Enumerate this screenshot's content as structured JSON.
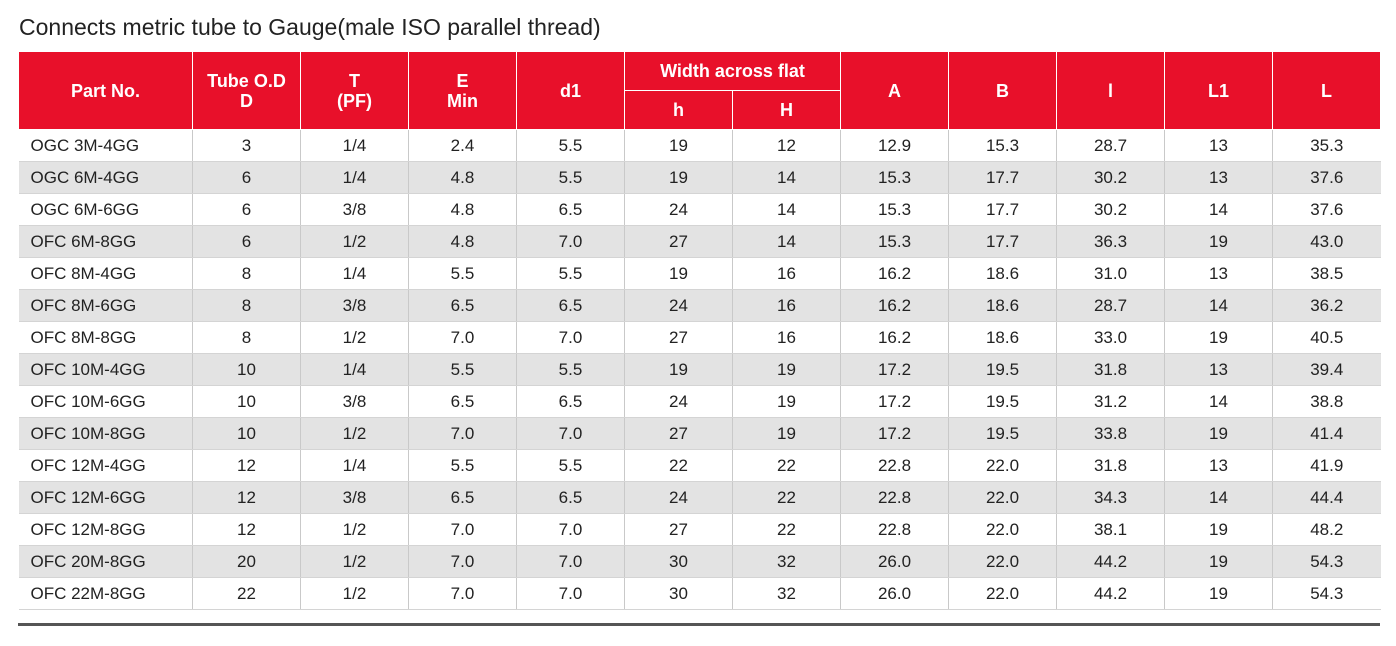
{
  "title": "Connects metric tube to Gauge(male ISO parallel thread)",
  "headers": {
    "part_no": "Part No.",
    "tube_od_line1": "Tube O.D",
    "tube_od_line2": "D",
    "t_line1": "T",
    "t_line2": "(PF)",
    "e_line1": "E",
    "e_line2": "Min",
    "d1": "d1",
    "width_across_flat": "Width across flat",
    "h": "h",
    "H": "H",
    "A": "A",
    "B": "B",
    "l": "l",
    "L1": "L1",
    "L": "L"
  },
  "rows": [
    {
      "part_no": "OGC 3M-4GG",
      "d": "3",
      "t": "1/4",
      "e": "2.4",
      "d1": "5.5",
      "h": "19",
      "H": "12",
      "a": "12.9",
      "b": "15.3",
      "l": "28.7",
      "l1": "13",
      "L": "35.3"
    },
    {
      "part_no": "OGC 6M-4GG",
      "d": "6",
      "t": "1/4",
      "e": "4.8",
      "d1": "5.5",
      "h": "19",
      "H": "14",
      "a": "15.3",
      "b": "17.7",
      "l": "30.2",
      "l1": "13",
      "L": "37.6"
    },
    {
      "part_no": "OGC 6M-6GG",
      "d": "6",
      "t": "3/8",
      "e": "4.8",
      "d1": "6.5",
      "h": "24",
      "H": "14",
      "a": "15.3",
      "b": "17.7",
      "l": "30.2",
      "l1": "14",
      "L": "37.6"
    },
    {
      "part_no": "OFC 6M-8GG",
      "d": "6",
      "t": "1/2",
      "e": "4.8",
      "d1": "7.0",
      "h": "27",
      "H": "14",
      "a": "15.3",
      "b": "17.7",
      "l": "36.3",
      "l1": "19",
      "L": "43.0"
    },
    {
      "part_no": "OFC 8M-4GG",
      "d": "8",
      "t": "1/4",
      "e": "5.5",
      "d1": "5.5",
      "h": "19",
      "H": "16",
      "a": "16.2",
      "b": "18.6",
      "l": "31.0",
      "l1": "13",
      "L": "38.5"
    },
    {
      "part_no": "OFC 8M-6GG",
      "d": "8",
      "t": "3/8",
      "e": "6.5",
      "d1": "6.5",
      "h": "24",
      "H": "16",
      "a": "16.2",
      "b": "18.6",
      "l": "28.7",
      "l1": "14",
      "L": "36.2"
    },
    {
      "part_no": "OFC 8M-8GG",
      "d": "8",
      "t": "1/2",
      "e": "7.0",
      "d1": "7.0",
      "h": "27",
      "H": "16",
      "a": "16.2",
      "b": "18.6",
      "l": "33.0",
      "l1": "19",
      "L": "40.5"
    },
    {
      "part_no": "OFC 10M-4GG",
      "d": "10",
      "t": "1/4",
      "e": "5.5",
      "d1": "5.5",
      "h": "19",
      "H": "19",
      "a": "17.2",
      "b": "19.5",
      "l": "31.8",
      "l1": "13",
      "L": "39.4"
    },
    {
      "part_no": "OFC 10M-6GG",
      "d": "10",
      "t": "3/8",
      "e": "6.5",
      "d1": "6.5",
      "h": "24",
      "H": "19",
      "a": "17.2",
      "b": "19.5",
      "l": "31.2",
      "l1": "14",
      "L": "38.8"
    },
    {
      "part_no": "OFC 10M-8GG",
      "d": "10",
      "t": "1/2",
      "e": "7.0",
      "d1": "7.0",
      "h": "27",
      "H": "19",
      "a": "17.2",
      "b": "19.5",
      "l": "33.8",
      "l1": "19",
      "L": "41.4"
    },
    {
      "part_no": "OFC 12M-4GG",
      "d": "12",
      "t": "1/4",
      "e": "5.5",
      "d1": "5.5",
      "h": "22",
      "H": "22",
      "a": "22.8",
      "b": "22.0",
      "l": "31.8",
      "l1": "13",
      "L": "41.9"
    },
    {
      "part_no": "OFC 12M-6GG",
      "d": "12",
      "t": "3/8",
      "e": "6.5",
      "d1": "6.5",
      "h": "24",
      "H": "22",
      "a": "22.8",
      "b": "22.0",
      "l": "34.3",
      "l1": "14",
      "L": "44.4"
    },
    {
      "part_no": "OFC 12M-8GG",
      "d": "12",
      "t": "1/2",
      "e": "7.0",
      "d1": "7.0",
      "h": "27",
      "H": "22",
      "a": "22.8",
      "b": "22.0",
      "l": "38.1",
      "l1": "19",
      "L": "48.2"
    },
    {
      "part_no": "OFC 20M-8GG",
      "d": "20",
      "t": "1/2",
      "e": "7.0",
      "d1": "7.0",
      "h": "30",
      "H": "32",
      "a": "26.0",
      "b": "22.0",
      "l": "44.2",
      "l1": "19",
      "L": "54.3"
    },
    {
      "part_no": "OFC 22M-8GG",
      "d": "22",
      "t": "1/2",
      "e": "7.0",
      "d1": "7.0",
      "h": "30",
      "H": "32",
      "a": "26.0",
      "b": "22.0",
      "l": "44.2",
      "l1": "19",
      "L": "54.3"
    }
  ],
  "colors": {
    "header_red": "#e8102a",
    "row_stripe": "#e3e3e3"
  }
}
